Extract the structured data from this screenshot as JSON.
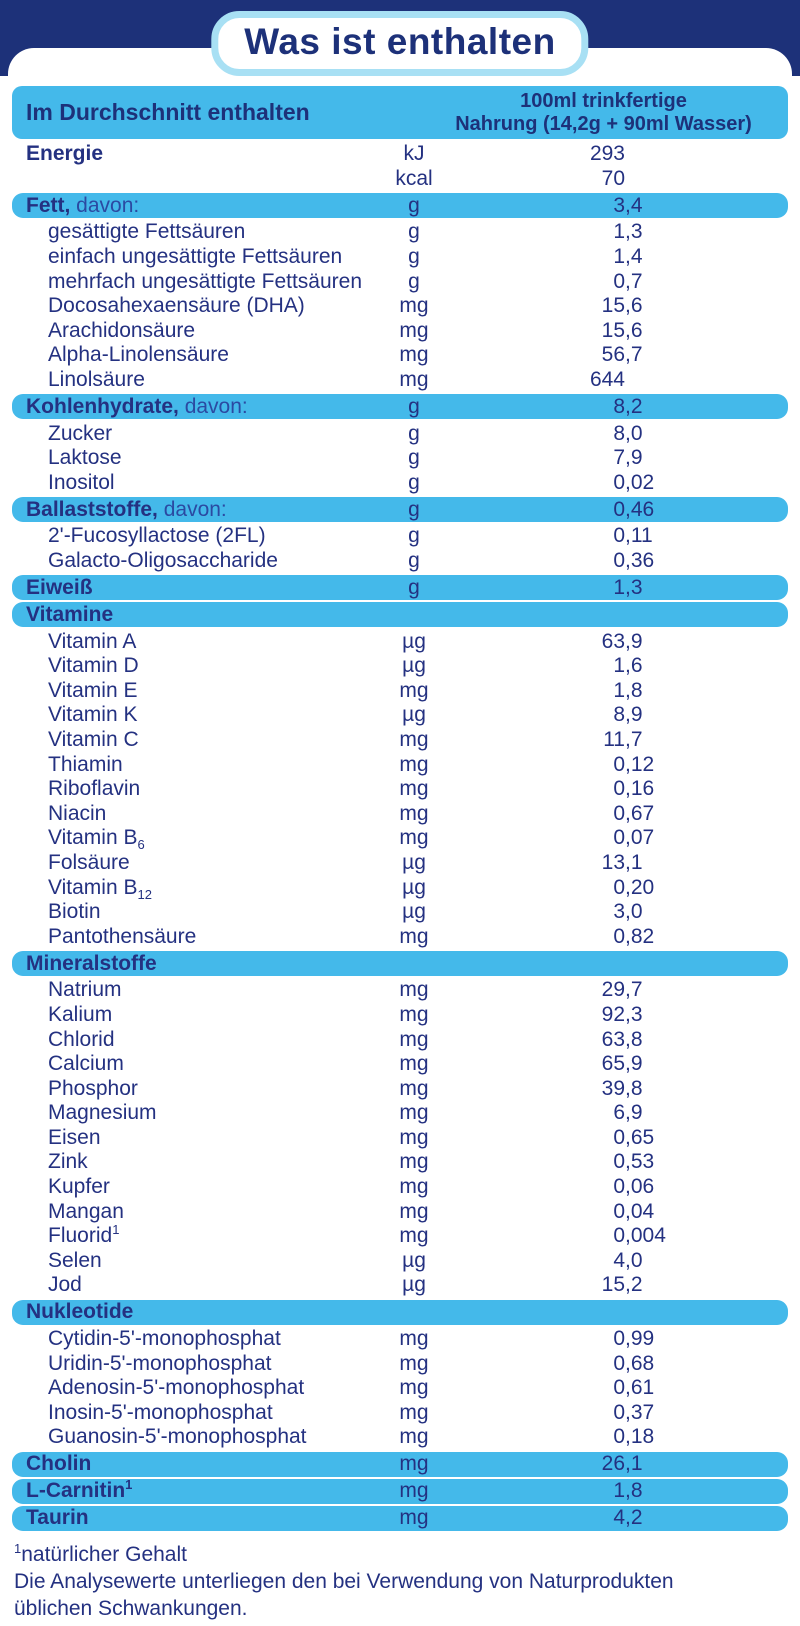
{
  "title": "Was ist enthalten",
  "colors": {
    "navy_band": "#1d3179",
    "text_navy": "#243181",
    "row_highlight_blue": "#44b9ea",
    "badge_outline_blue": "#a8e0f4",
    "background": "#ffffff"
  },
  "table": {
    "header": {
      "left": "Im Durchschnitt enthalten",
      "right_line1": "100ml trinkfertige",
      "right_line2": "Nahrung (14,2g + 90ml Wasser)"
    },
    "rows": [
      {
        "label": "Energie",
        "unit": "kJ",
        "value": "293",
        "style": "top"
      },
      {
        "label": "",
        "unit": "kcal",
        "value": "70",
        "style": "top"
      },
      {
        "label": "Fett,",
        "rest": " davon:",
        "unit": "g",
        "value": "3,4",
        "style": "hl"
      },
      {
        "label": "gesättigte Fettsäuren",
        "unit": "g",
        "value": "1,3",
        "style": "indent"
      },
      {
        "label": "einfach ungesättigte Fettsäuren",
        "unit": "g",
        "value": "1,4",
        "style": "indent"
      },
      {
        "label": "mehrfach ungesättigte Fettsäuren",
        "unit": "g",
        "value": "0,7",
        "style": "indent"
      },
      {
        "label": "Docosahexaensäure (DHA)",
        "unit": "mg",
        "value": "15,6",
        "style": "indent"
      },
      {
        "label": "Arachidonsäure",
        "unit": "mg",
        "value": "15,6",
        "style": "indent"
      },
      {
        "label": "Alpha-Linolensäure",
        "unit": "mg",
        "value": "56,7",
        "style": "indent"
      },
      {
        "label": "Linolsäure",
        "unit": "mg",
        "value": "644",
        "style": "indent"
      },
      {
        "label": "Kohlenhydrate,",
        "rest": " davon:",
        "unit": "g",
        "value": "8,2",
        "style": "hl"
      },
      {
        "label": "Zucker",
        "unit": "g",
        "value": "8,0",
        "style": "indent"
      },
      {
        "label": "Laktose",
        "unit": "g",
        "value": "7,9",
        "style": "indent"
      },
      {
        "label": "Inositol",
        "unit": "g",
        "value": "0,02",
        "style": "indent"
      },
      {
        "label": "Ballaststoffe,",
        "rest": " davon:",
        "unit": "g",
        "value": "0,46",
        "style": "hl"
      },
      {
        "label": "2'-Fucosyllactose (2FL)",
        "unit": "g",
        "value": "0,11",
        "style": "indent"
      },
      {
        "label": "Galacto-Oligosaccharide",
        "unit": "g",
        "value": "0,36",
        "style": "indent"
      },
      {
        "label": "Eiweiß",
        "unit": "g",
        "value": "1,3",
        "style": "hl"
      },
      {
        "label": "Vitamine",
        "unit": "",
        "value": "",
        "style": "hl"
      },
      {
        "label": "Vitamin A",
        "unit": "µg",
        "value": "63,9",
        "style": "indent"
      },
      {
        "label": "Vitamin D",
        "unit": "µg",
        "value": "1,6",
        "style": "indent"
      },
      {
        "label": "Vitamin E",
        "unit": "mg",
        "value": "1,8",
        "style": "indent"
      },
      {
        "label": "Vitamin K",
        "unit": "µg",
        "value": "8,9",
        "style": "indent"
      },
      {
        "label": "Vitamin C",
        "unit": "mg",
        "value": "11,7",
        "style": "indent"
      },
      {
        "label": "Thiamin",
        "unit": "mg",
        "value": "0,12",
        "style": "indent"
      },
      {
        "label": "Riboflavin",
        "unit": "mg",
        "value": "0,16",
        "style": "indent"
      },
      {
        "label": "Niacin",
        "unit": "mg",
        "value": "0,67",
        "style": "indent"
      },
      {
        "label": "Vitamin B",
        "subscript": "6",
        "unit": "mg",
        "value": "0,07",
        "style": "indent"
      },
      {
        "label": "Folsäure",
        "unit": "µg",
        "value": "13,1",
        "style": "indent"
      },
      {
        "label": "Vitamin B",
        "subscript": "12",
        "unit": "µg",
        "value": "0,20",
        "style": "indent"
      },
      {
        "label": "Biotin",
        "unit": "µg",
        "value": "3,0",
        "style": "indent"
      },
      {
        "label": "Pantothensäure",
        "unit": "mg",
        "value": "0,82",
        "style": "indent"
      },
      {
        "label": "Mineralstoffe",
        "unit": "",
        "value": "",
        "style": "hl"
      },
      {
        "label": "Natrium",
        "unit": "mg",
        "value": "29,7",
        "style": "indent"
      },
      {
        "label": "Kalium",
        "unit": "mg",
        "value": "92,3",
        "style": "indent"
      },
      {
        "label": "Chlorid",
        "unit": "mg",
        "value": "63,8",
        "style": "indent"
      },
      {
        "label": "Calcium",
        "unit": "mg",
        "value": "65,9",
        "style": "indent"
      },
      {
        "label": "Phosphor",
        "unit": "mg",
        "value": "39,8",
        "style": "indent"
      },
      {
        "label": "Magnesium",
        "unit": "mg",
        "value": "6,9",
        "style": "indent"
      },
      {
        "label": "Eisen",
        "unit": "mg",
        "value": "0,65",
        "style": "indent"
      },
      {
        "label": "Zink",
        "unit": "mg",
        "value": "0,53",
        "style": "indent"
      },
      {
        "label": "Kupfer",
        "unit": "mg",
        "value": "0,06",
        "style": "indent"
      },
      {
        "label": "Mangan",
        "unit": "mg",
        "value": "0,04",
        "style": "indent"
      },
      {
        "label": "Fluorid",
        "sup": "1",
        "unit": "mg",
        "value": "0,004",
        "style": "indent"
      },
      {
        "label": "Selen",
        "unit": "µg",
        "value": "4,0",
        "style": "indent"
      },
      {
        "label": "Jod",
        "unit": "µg",
        "value": "15,2",
        "style": "indent"
      },
      {
        "label": "Nukleotide",
        "unit": "",
        "value": "",
        "style": "hl"
      },
      {
        "label": "Cytidin-5'-monophosphat",
        "unit": "mg",
        "value": "0,99",
        "style": "indent"
      },
      {
        "label": "Uridin-5'-monophosphat",
        "unit": "mg",
        "value": "0,68",
        "style": "indent"
      },
      {
        "label": "Adenosin-5'-monophosphat",
        "unit": "mg",
        "value": "0,61",
        "style": "indent"
      },
      {
        "label": "Inosin-5'-monophosphat",
        "unit": "mg",
        "value": "0,37",
        "style": "indent"
      },
      {
        "label": "Guanosin-5'-monophosphat",
        "unit": "mg",
        "value": "0,18",
        "style": "indent"
      },
      {
        "label": "Cholin",
        "unit": "mg",
        "value": "26,1",
        "style": "hl"
      },
      {
        "label": "L-Carnitin",
        "sup": "1",
        "unit": "mg",
        "value": "1,8",
        "style": "hl"
      },
      {
        "label": "Taurin",
        "unit": "mg",
        "value": "4,2",
        "style": "hl"
      }
    ]
  },
  "footnotes": {
    "note1_marker": "1",
    "note1_text": "natürlicher Gehalt",
    "note2_line1": "Die Analysewerte unterliegen den bei Verwendung von Naturprodukten",
    "note2_line2": "üblichen Schwankungen."
  }
}
